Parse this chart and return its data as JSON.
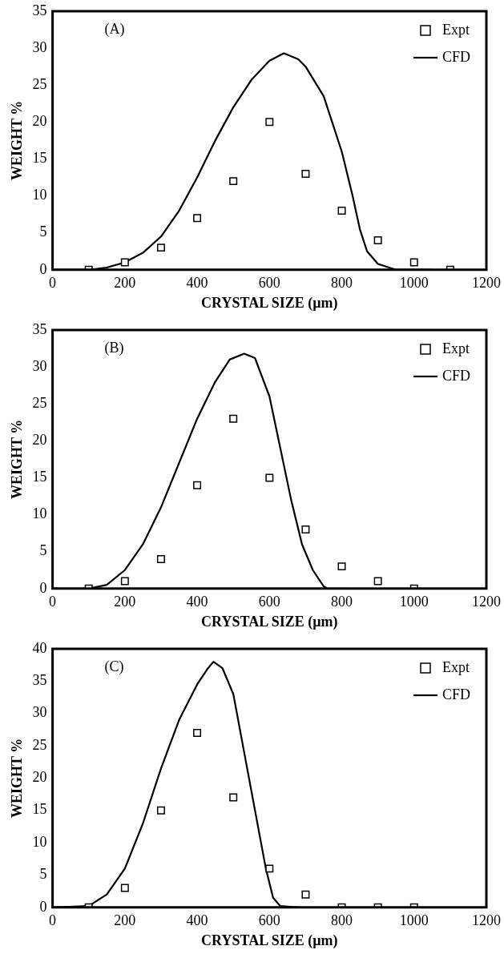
{
  "chart_data": [
    {
      "type": "scatter",
      "xlabel": "CRYSTAL SIZE (µm)",
      "ylabel": "WEIGHT %",
      "annotations": [
        "(A)"
      ],
      "xlim": [
        0,
        1200
      ],
      "xticks": [
        0,
        200,
        400,
        600,
        800,
        1000,
        1200
      ],
      "ylim": [
        0,
        35
      ],
      "yticks": [
        0,
        5,
        10,
        15,
        20,
        25,
        30,
        35
      ],
      "grid": false,
      "legend": "top right",
      "series": [
        {
          "name": "Expt",
          "type": "scatter",
          "marker": "square",
          "color": "#000000",
          "x": [
            100,
            200,
            300,
            400,
            500,
            600,
            700,
            800,
            900,
            1000,
            1100
          ],
          "values": [
            0,
            1,
            3,
            7,
            12,
            20,
            13,
            8,
            4,
            1,
            0
          ]
        },
        {
          "name": "CFD",
          "type": "line",
          "marker": "none",
          "line_style": "solid",
          "color": "#000000",
          "x": [
            0,
            100,
            150,
            200,
            250,
            300,
            350,
            400,
            450,
            500,
            550,
            600,
            640,
            680,
            700,
            750,
            800,
            830,
            850,
            870,
            900,
            950,
            1050
          ],
          "values": [
            0,
            0,
            0.3,
            1,
            2.3,
            4.5,
            8,
            12.5,
            17.5,
            22,
            25.7,
            28.3,
            29.3,
            28.5,
            27.5,
            23.5,
            16,
            10,
            5.5,
            2.5,
            0.8,
            0,
            0
          ]
        }
      ]
    },
    {
      "type": "scatter",
      "xlabel": "CRYSTAL SIZE (µm)",
      "ylabel": "WEIGHT %",
      "annotations": [
        "(B)"
      ],
      "xlim": [
        0,
        1200
      ],
      "xticks": [
        0,
        200,
        400,
        600,
        800,
        1000,
        1200
      ],
      "ylim": [
        0,
        35
      ],
      "yticks": [
        0,
        5,
        10,
        15,
        20,
        25,
        30,
        35
      ],
      "grid": false,
      "legend": "top right",
      "series": [
        {
          "name": "Expt",
          "type": "scatter",
          "marker": "square",
          "color": "#000000",
          "x": [
            100,
            200,
            300,
            400,
            500,
            600,
            700,
            800,
            900,
            1000
          ],
          "values": [
            0,
            1,
            4,
            14,
            23,
            15,
            8,
            3,
            1,
            0
          ]
        },
        {
          "name": "CFD",
          "type": "line",
          "marker": "none",
          "line_style": "solid",
          "color": "#000000",
          "x": [
            0,
            100,
            150,
            200,
            250,
            300,
            350,
            400,
            450,
            490,
            530,
            560,
            600,
            630,
            660,
            690,
            720,
            750,
            760,
            820
          ],
          "values": [
            0,
            0,
            0.5,
            2.5,
            6,
            11,
            17,
            23,
            28,
            31,
            31.8,
            31.2,
            26,
            19,
            12,
            6,
            2.5,
            0.3,
            0,
            0
          ]
        }
      ]
    },
    {
      "type": "scatter",
      "xlabel": "CRYSTAL SIZE (µm)",
      "ylabel": "WEIGHT %",
      "annotations": [
        "(C)"
      ],
      "xlim": [
        0,
        1200
      ],
      "xticks": [
        0,
        200,
        400,
        600,
        800,
        1000,
        1200
      ],
      "ylim": [
        0,
        40
      ],
      "yticks": [
        0,
        5,
        10,
        15,
        20,
        25,
        30,
        35,
        40
      ],
      "grid": false,
      "legend": "top right",
      "series": [
        {
          "name": "Expt",
          "type": "scatter",
          "marker": "square",
          "color": "#000000",
          "x": [
            100,
            200,
            300,
            400,
            500,
            600,
            700,
            800,
            900,
            1000
          ],
          "values": [
            0,
            3,
            15,
            27,
            17,
            6,
            2,
            0,
            0,
            0
          ]
        },
        {
          "name": "CFD",
          "type": "line",
          "marker": "none",
          "line_style": "solid",
          "color": "#000000",
          "x": [
            0,
            100,
            150,
            200,
            250,
            300,
            350,
            400,
            430,
            445,
            470,
            500,
            530,
            560,
            590,
            610,
            630,
            680
          ],
          "values": [
            0,
            0.2,
            2,
            6,
            13,
            21.5,
            29,
            34.5,
            37,
            38,
            37,
            33,
            24,
            15,
            6,
            1.5,
            0.2,
            0
          ]
        }
      ]
    }
  ]
}
